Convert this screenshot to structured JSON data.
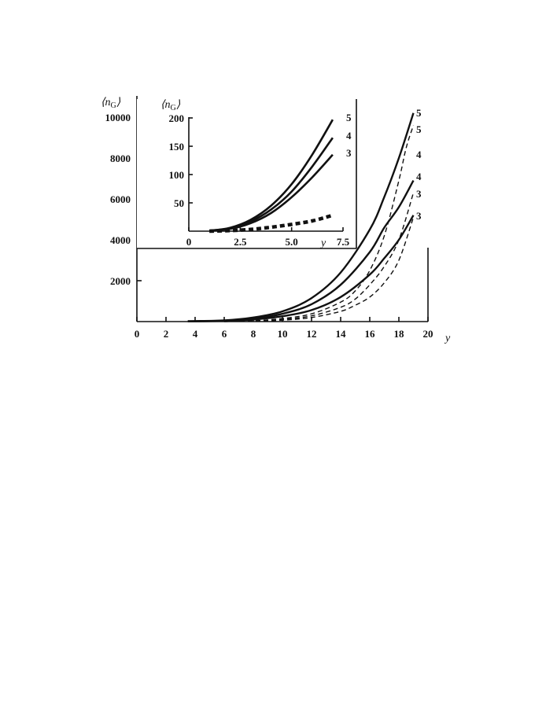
{
  "chart_data": [
    {
      "type": "line",
      "title": "",
      "xlabel": "y",
      "ylabel": "⟨n_G⟩",
      "ylabel_parts": {
        "open": "⟨",
        "var": "n",
        "sub": "G",
        "close": "⟩"
      },
      "xlim": [
        0,
        20
      ],
      "ylim": [
        0,
        10000
      ],
      "xticks": [
        0,
        2,
        4,
        6,
        8,
        10,
        12,
        14,
        16,
        18,
        20
      ],
      "yticks": [
        2000,
        4000,
        6000,
        8000,
        10000
      ],
      "legend": "none",
      "grid": false,
      "series": [
        {
          "label": "5",
          "style": "solid",
          "x": [
            3.5,
            6,
            8,
            10,
            12,
            14,
            16,
            17,
            18,
            19
          ],
          "y": [
            20,
            60,
            200,
            500,
            1150,
            2400,
            4500,
            6100,
            8000,
            10200
          ]
        },
        {
          "label": "4",
          "style": "solid",
          "x": [
            3.5,
            6,
            8,
            10,
            12,
            14,
            16,
            17,
            18,
            19
          ],
          "y": [
            15,
            45,
            140,
            380,
            850,
            1800,
            3400,
            4600,
            5600,
            6900
          ]
        },
        {
          "label": "3",
          "style": "solid",
          "x": [
            3.5,
            6,
            8,
            10,
            12,
            14,
            16,
            17,
            18,
            19
          ],
          "y": [
            10,
            30,
            100,
            260,
            560,
            1200,
            2300,
            3100,
            4000,
            5200
          ]
        },
        {
          "label": "5",
          "style": "dashed",
          "x": [
            6,
            8,
            10,
            12,
            14,
            15,
            16,
            17,
            18,
            18.5,
            19
          ],
          "y": [
            5,
            40,
            150,
            380,
            950,
            1500,
            2500,
            4200,
            6900,
            8500,
            9600
          ]
        },
        {
          "label": "4",
          "style": "dashed",
          "x": [
            6,
            8,
            10,
            12,
            14,
            15,
            16,
            17,
            18,
            19
          ],
          "y": [
            5,
            30,
            110,
            280,
            700,
            1100,
            1800,
            2700,
            4000,
            6300
          ]
        },
        {
          "label": "3",
          "style": "dashed",
          "x": [
            6,
            8,
            10,
            12,
            14,
            15,
            16,
            17,
            18,
            19
          ],
          "y": [
            3,
            20,
            70,
            200,
            500,
            800,
            1200,
            1900,
            3000,
            5100
          ]
        }
      ]
    },
    {
      "type": "line",
      "title": "",
      "xlabel": "y",
      "ylabel": "⟨n_G⟩",
      "ylabel_parts": {
        "open": "⟨",
        "var": "n",
        "sub": "G",
        "close": "⟩"
      },
      "xlim": [
        0,
        7.5
      ],
      "ylim": [
        0,
        200
      ],
      "xticks": [
        0,
        2.5,
        5.0,
        7.5
      ],
      "xtick_labels": [
        "0",
        "2.5",
        "5.0",
        "7.5"
      ],
      "yticks": [
        50,
        100,
        150,
        200
      ],
      "legend": "none",
      "grid": false,
      "series": [
        {
          "label": "5",
          "style": "solid",
          "x": [
            1,
            2,
            3,
            4,
            5,
            6,
            7
          ],
          "y": [
            1,
            6,
            20,
            45,
            83,
            135,
            197
          ]
        },
        {
          "label": "4",
          "style": "solid",
          "x": [
            1,
            2,
            3,
            4,
            5,
            6,
            7
          ],
          "y": [
            1,
            5,
            17,
            38,
            70,
            114,
            165
          ]
        },
        {
          "label": "3",
          "style": "solid",
          "x": [
            1,
            2,
            3,
            4,
            5,
            6,
            7
          ],
          "y": [
            1,
            4,
            14,
            32,
            60,
            95,
            135
          ]
        },
        {
          "label": "",
          "style": "dashed",
          "x": [
            1,
            2,
            3,
            4,
            5,
            6,
            7
          ],
          "y": [
            0,
            1,
            3,
            7,
            12,
            18,
            28
          ]
        }
      ]
    }
  ]
}
